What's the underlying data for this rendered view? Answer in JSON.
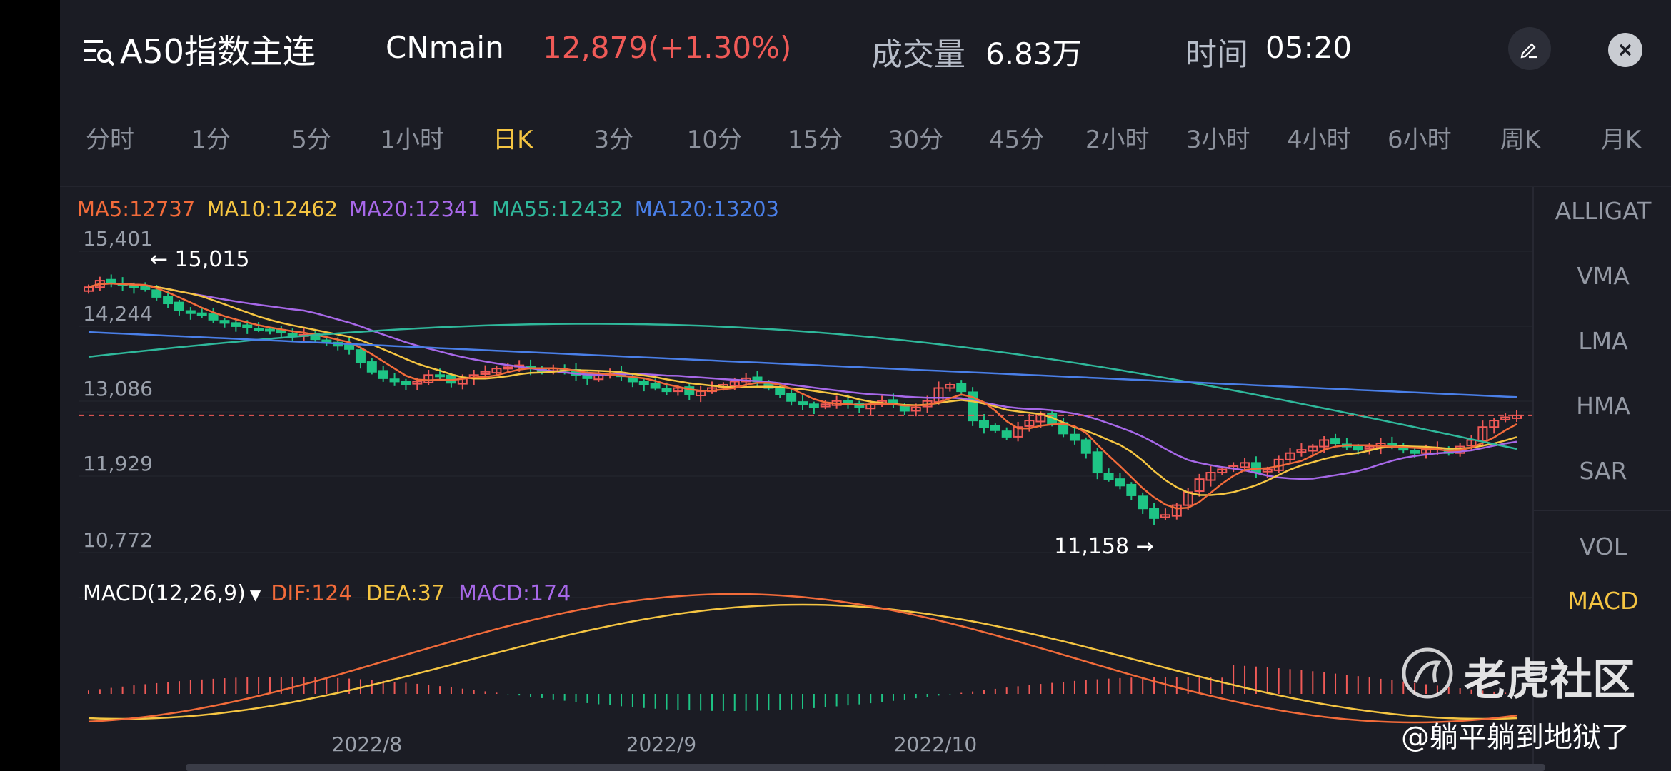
{
  "header": {
    "title": "A50指数主连",
    "code": "CNmain",
    "price": "12,879(+1.30%)",
    "volume_label": "成交量",
    "volume_value": "6.83万",
    "time_label": "时间",
    "time_value": "05:20"
  },
  "tabs": [
    {
      "label": "分时",
      "active": false
    },
    {
      "label": "1分",
      "active": false
    },
    {
      "label": "5分",
      "active": false
    },
    {
      "label": "1小时",
      "active": false
    },
    {
      "label": "日K",
      "active": true
    },
    {
      "label": "3分",
      "active": false
    },
    {
      "label": "10分",
      "active": false
    },
    {
      "label": "15分",
      "active": false
    },
    {
      "label": "30分",
      "active": false
    },
    {
      "label": "45分",
      "active": false
    },
    {
      "label": "2小时",
      "active": false
    },
    {
      "label": "3小时",
      "active": false
    },
    {
      "label": "4小时",
      "active": false
    },
    {
      "label": "6小时",
      "active": false
    },
    {
      "label": "周K",
      "active": false
    },
    {
      "label": "月K",
      "active": false
    }
  ],
  "ma_legend": [
    {
      "text": "MA5:12737",
      "color": "#f26b3a"
    },
    {
      "text": "MA10:12462",
      "color": "#f5c542"
    },
    {
      "text": "MA20:12341",
      "color": "#a768e8"
    },
    {
      "text": "MA55:12432",
      "color": "#2fb89b"
    },
    {
      "text": "MA120:13203",
      "color": "#4a7fe8"
    }
  ],
  "indicators": {
    "overlays": [
      "ALLIGAT",
      "VMA",
      "LMA",
      "HMA",
      "SAR"
    ],
    "sub": [
      "VOL",
      "MACD"
    ],
    "active_sub": "MACD"
  },
  "macd_legend": {
    "label": "MACD(12,26,9)",
    "dif": "DIF:124",
    "dea": "DEA:37",
    "macd": "MACD:174",
    "dif_color": "#f26b3a",
    "dea_color": "#f5c542",
    "macd_color": "#a768e8"
  },
  "watermark": {
    "brand": "老虎社区",
    "user": "@躺平躺到地狱了"
  },
  "colors": {
    "up": "#f05a57",
    "down": "#1ec485",
    "background": "#1b1c24",
    "accent": "#f5c542"
  },
  "chart_data": {
    "type": "candlestick",
    "y_ticks": [
      "15,401",
      "14,244",
      "13,086",
      "11,929",
      "10,772"
    ],
    "ylim": [
      10772,
      15401
    ],
    "x_ticks": [
      "2022/8",
      "2022/9",
      "2022/10"
    ],
    "high_marker": "15,015",
    "low_marker": "11,158",
    "last_close": 12879,
    "close_series": [
      14850,
      14950,
      14920,
      14880,
      14850,
      14820,
      14700,
      14600,
      14500,
      14450,
      14420,
      14350,
      14300,
      14250,
      14230,
      14200,
      14180,
      14150,
      14100,
      14120,
      14050,
      14000,
      13950,
      13900,
      13700,
      13550,
      13450,
      13400,
      13350,
      13400,
      13500,
      13480,
      13380,
      13450,
      13500,
      13550,
      13600,
      13620,
      13650,
      13600,
      13550,
      13600,
      13580,
      13500,
      13450,
      13500,
      13520,
      13480,
      13400,
      13350,
      13300,
      13250,
      13300,
      13200,
      13250,
      13300,
      13350,
      13400,
      13450,
      13400,
      13300,
      13200,
      13100,
      13050,
      13000,
      13050,
      13100,
      13050,
      13000,
      13050,
      13100,
      13050,
      12950,
      13000,
      13100,
      13300,
      13350,
      13250,
      12800,
      12700,
      12650,
      12550,
      12700,
      12800,
      12900,
      12750,
      12600,
      12500,
      12300,
      12000,
      11900,
      11800,
      11650,
      11450,
      11300,
      11350,
      11500,
      11700,
      11900,
      12000,
      12050,
      12100,
      12150,
      12000,
      12050,
      12200,
      12300,
      12350,
      12400,
      12500,
      12450,
      12400,
      12350,
      12400,
      12450,
      12400,
      12350,
      12300,
      12350,
      12380,
      12300,
      12400,
      12500,
      12700,
      12800,
      12850,
      12879
    ]
  }
}
